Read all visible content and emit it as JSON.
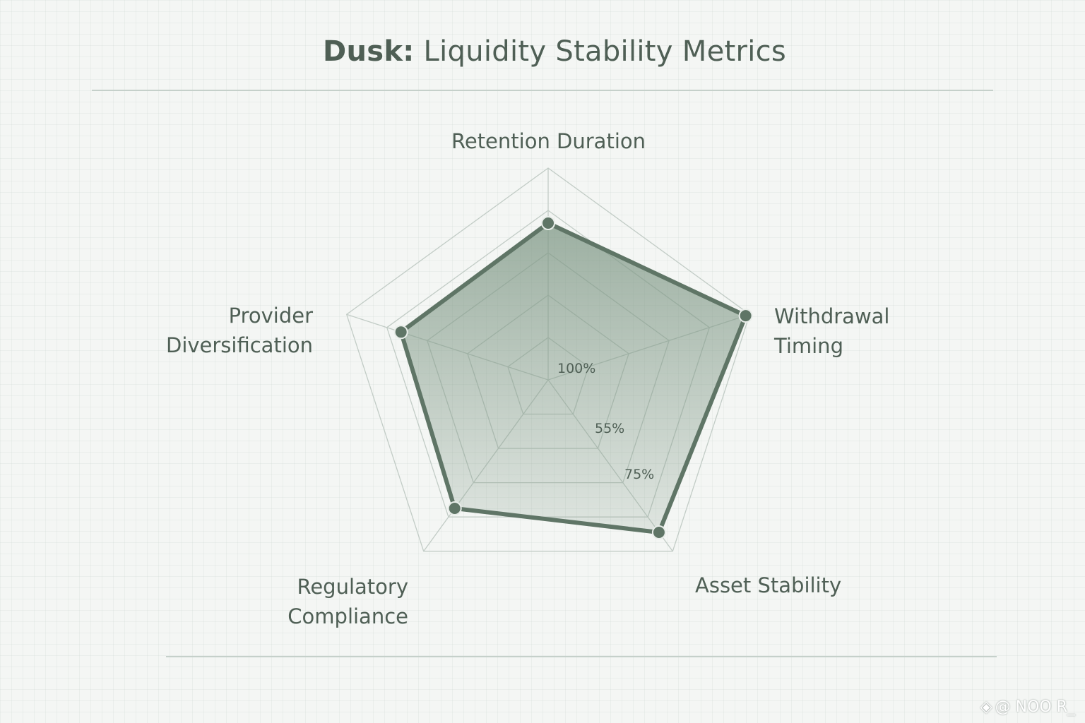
{
  "title": {
    "bold": "Dusk:",
    "rest": "Liquidity Stability Metrics"
  },
  "colors": {
    "series_line": "#5f7566",
    "series_fill": "#7f9886",
    "grid": "#c2ccc6",
    "text": "#4f5f55"
  },
  "chart_data": {
    "type": "radar",
    "title": "Dusk: Liquidity Stability Metrics",
    "axes": [
      {
        "name": "Retention Duration",
        "lines": [
          "Retention Duration"
        ]
      },
      {
        "name": "Withdrawal Timing",
        "lines": [
          "Withdrawal",
          "Timing"
        ]
      },
      {
        "name": "Asset Stability",
        "lines": [
          "Asset Stability"
        ]
      },
      {
        "name": "Regulatory Compliance",
        "lines": [
          "Regulatory",
          "Compliance"
        ]
      },
      {
        "name": "Provider Diversification",
        "lines": [
          "Provider",
          "Diversification"
        ]
      }
    ],
    "tick_labels": [
      "100%",
      "55%",
      "75%"
    ],
    "series": [
      {
        "values": [
          0.74,
          0.98,
          0.89,
          0.75,
          0.73
        ]
      }
    ],
    "grid_rings": 5,
    "legend": "none"
  },
  "watermark": {
    "icon": "diamond-icon",
    "text": "@ NOO R_"
  }
}
